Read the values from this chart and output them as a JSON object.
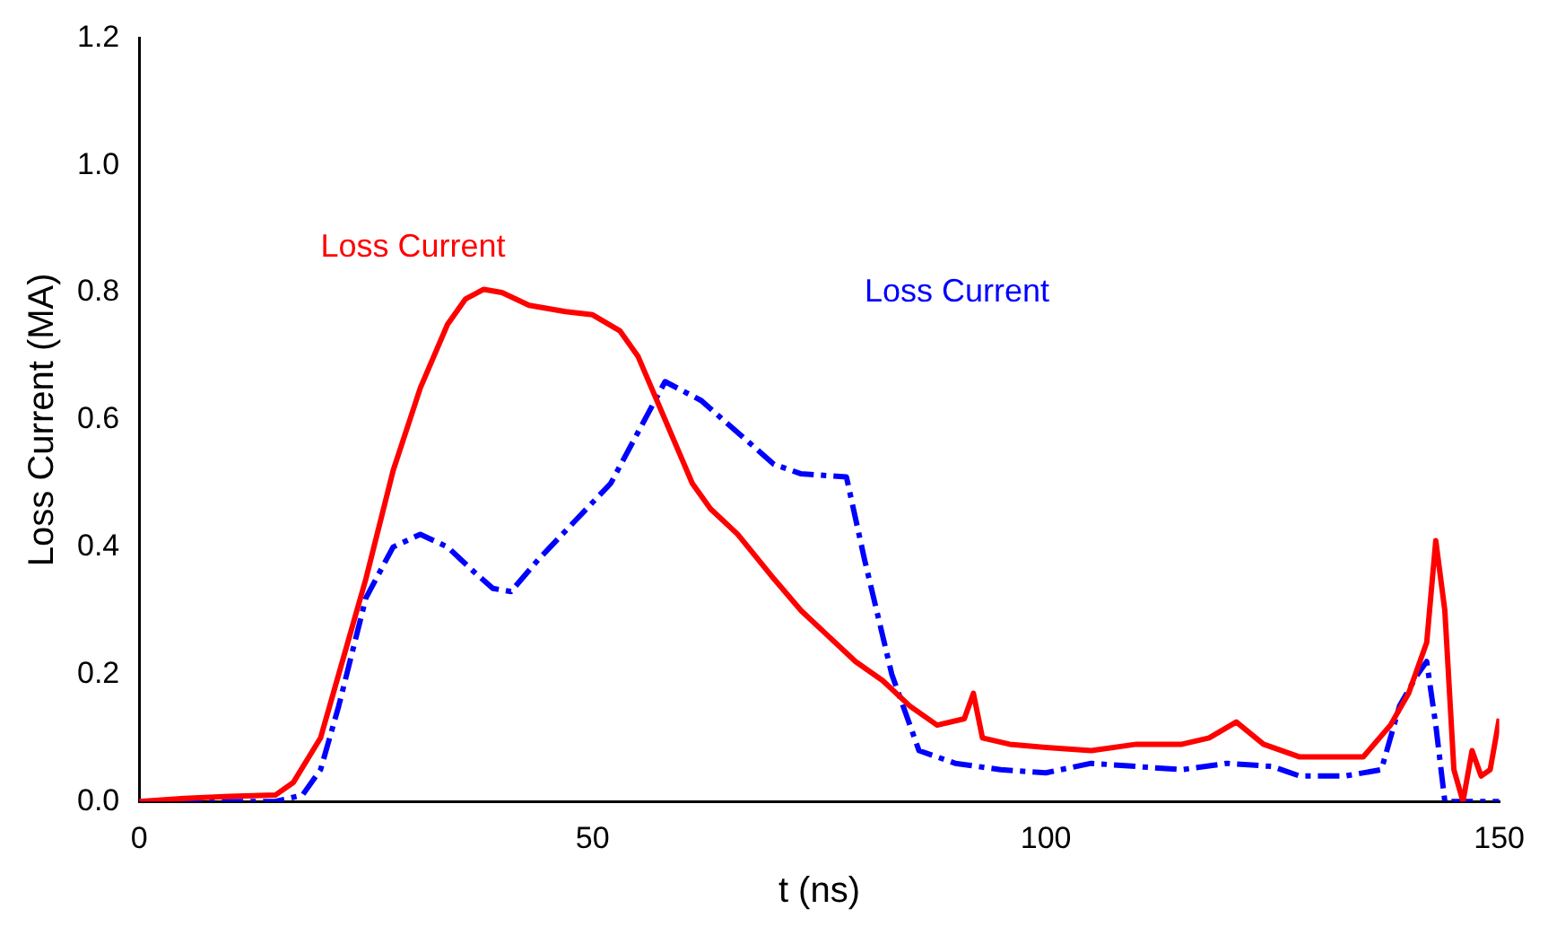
{
  "chart_data": {
    "type": "line",
    "xlabel": "t (ns)",
    "ylabel": "Loss Current (MA)",
    "xlim": [
      0,
      150
    ],
    "xticks": [
      0,
      50,
      100,
      150
    ],
    "ylim": [
      0,
      1.2
    ],
    "yticks": [
      {
        "value": 0,
        "label": "0.0"
      },
      {
        "value": 0.2,
        "label": "0.2"
      },
      {
        "value": 0.4,
        "label": "0.4"
      },
      {
        "value": 0.6,
        "label": "0.6"
      },
      {
        "value": 0.8,
        "label": "0.8"
      },
      {
        "value": 1.0,
        "label": "1.0"
      },
      {
        "value": 1.2,
        "label": "1.2"
      }
    ],
    "grid": false,
    "legend": false,
    "marker": "none",
    "series": [
      {
        "name": "Loss Current",
        "color": "#ff0000",
        "line_style": "solid",
        "x": [
          0,
          5,
          10,
          15,
          17,
          20,
          22,
          25,
          28,
          31,
          34,
          36,
          38,
          40,
          43,
          47,
          50,
          53,
          55,
          58,
          61,
          63,
          66,
          70,
          73,
          76,
          79,
          82,
          85,
          88,
          91,
          92,
          93,
          96,
          100,
          105,
          110,
          115,
          118,
          121,
          124,
          128,
          132,
          135,
          138,
          140,
          142,
          143,
          144,
          145,
          146,
          147,
          148,
          149,
          150
        ],
        "values": [
          0,
          0.005,
          0.008,
          0.01,
          0.03,
          0.1,
          0.2,
          0.35,
          0.52,
          0.65,
          0.75,
          0.79,
          0.805,
          0.8,
          0.78,
          0.77,
          0.765,
          0.74,
          0.7,
          0.6,
          0.5,
          0.46,
          0.42,
          0.35,
          0.3,
          0.26,
          0.22,
          0.19,
          0.15,
          0.12,
          0.13,
          0.17,
          0.1,
          0.09,
          0.085,
          0.08,
          0.09,
          0.09,
          0.1,
          0.125,
          0.09,
          0.07,
          0.07,
          0.07,
          0.12,
          0.17,
          0.25,
          0.41,
          0.3,
          0.05,
          0,
          0.08,
          0.04,
          0.05,
          0.13
        ]
      },
      {
        "name": "Loss Current",
        "color": "#0000ff",
        "line_style": "dashed",
        "x": [
          0,
          15,
          18,
          20,
          22,
          25,
          28,
          31,
          34,
          37,
          39,
          41,
          44,
          48,
          52,
          55,
          58,
          62,
          66,
          70,
          73,
          78,
          80,
          83,
          86,
          90,
          95,
          100,
          105,
          110,
          115,
          120,
          125,
          128,
          133,
          137,
          139,
          141,
          142,
          143,
          144,
          150
        ],
        "values": [
          0,
          0,
          0.01,
          0.05,
          0.15,
          0.32,
          0.4,
          0.42,
          0.4,
          0.36,
          0.335,
          0.33,
          0.38,
          0.44,
          0.5,
          0.58,
          0.66,
          0.63,
          0.58,
          0.53,
          0.515,
          0.51,
          0.38,
          0.2,
          0.08,
          0.06,
          0.05,
          0.045,
          0.06,
          0.055,
          0.05,
          0.06,
          0.055,
          0.04,
          0.04,
          0.05,
          0.15,
          0.2,
          0.22,
          0.12,
          0,
          0
        ]
      }
    ]
  }
}
